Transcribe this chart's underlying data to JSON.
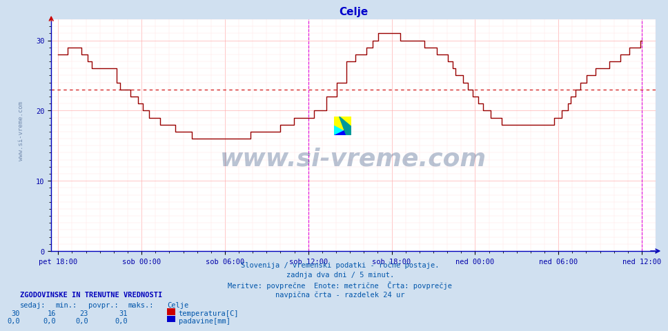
{
  "title": "Celje",
  "title_color": "#0000cc",
  "bg_color": "#d0e0f0",
  "plot_bg_color": "#ffffff",
  "grid_major_color": "#ffb0b0",
  "grid_minor_color": "#ffe0e0",
  "xlabel_color": "#0000aa",
  "ylabel_color": "#0000aa",
  "x_labels": [
    "pet 18:00",
    "sob 00:00",
    "sob 06:00",
    "sob 12:00",
    "sob 18:00",
    "ned 00:00",
    "ned 06:00",
    "ned 12:00"
  ],
  "ylim": [
    0,
    33
  ],
  "yticks": [
    0,
    10,
    20,
    30
  ],
  "avg_line_y": 23,
  "avg_line_color": "#cc0000",
  "vertical_line_color": "#dd00dd",
  "temp_line_color": "#990000",
  "watermark_text": "www.si-vreme.com",
  "watermark_color": "#1a3a6e",
  "watermark_alpha": 0.3,
  "footer_lines": [
    "Slovenija / vremenski podatki - ročne postaje.",
    "zadnja dva dni / 5 minut.",
    "Meritve: povprečne  Enote: metrične  Črta: povprečje",
    "navpična črta - razdelek 24 ur"
  ],
  "footer_color": "#0055aa",
  "legend_title": "ZGODOVINSKE IN TRENUTNE VREDNOSTI",
  "legend_title_color": "#0000bb",
  "legend_headers": [
    "sedaj:",
    "min.:",
    "povpr.:",
    "maks.:"
  ],
  "legend_temp_vals": [
    "30",
    "16",
    "23",
    "31"
  ],
  "legend_rain_vals": [
    "0,0",
    "0,0",
    "0,0",
    "0,0"
  ],
  "legend_station": "Celje",
  "legend_temp_label": "temperatura[C]",
  "legend_rain_label": "padavine[mm]",
  "legend_temp_color": "#cc0000",
  "legend_rain_color": "#0000cc",
  "legend_color": "#0055aa",
  "temp_data": [
    28,
    28,
    28,
    28,
    28,
    28,
    29,
    29,
    29,
    29,
    29,
    29,
    29,
    29,
    29,
    28,
    28,
    28,
    28,
    27,
    27,
    27,
    26,
    26,
    26,
    26,
    26,
    26,
    26,
    26,
    26,
    26,
    26,
    26,
    26,
    26,
    26,
    26,
    24,
    24,
    23,
    23,
    23,
    23,
    23,
    23,
    23,
    22,
    22,
    22,
    22,
    22,
    21,
    21,
    21,
    20,
    20,
    20,
    20,
    19,
    19,
    19,
    19,
    19,
    19,
    19,
    18,
    18,
    18,
    18,
    18,
    18,
    18,
    18,
    18,
    18,
    17,
    17,
    17,
    17,
    17,
    17,
    17,
    17,
    17,
    17,
    17,
    16,
    16,
    16,
    16,
    16,
    16,
    16,
    16,
    16,
    16,
    16,
    16,
    16,
    16,
    16,
    16,
    16,
    16,
    16,
    16,
    16,
    16,
    16,
    16,
    16,
    16,
    16,
    16,
    16,
    16,
    16,
    16,
    16,
    16,
    16,
    16,
    16,
    16,
    17,
    17,
    17,
    17,
    17,
    17,
    17,
    17,
    17,
    17,
    17,
    17,
    17,
    17,
    17,
    17,
    17,
    17,
    17,
    18,
    18,
    18,
    18,
    18,
    18,
    18,
    18,
    18,
    19,
    19,
    19,
    19,
    19,
    19,
    19,
    19,
    19,
    19,
    19,
    19,
    19,
    20,
    20,
    20,
    20,
    20,
    20,
    20,
    20,
    22,
    22,
    22,
    22,
    22,
    22,
    22,
    24,
    24,
    24,
    24,
    24,
    24,
    27,
    27,
    27,
    27,
    27,
    27,
    28,
    28,
    28,
    28,
    28,
    28,
    28,
    29,
    29,
    29,
    29,
    30,
    30,
    30,
    30,
    31,
    31,
    31,
    31,
    31,
    31,
    31,
    31,
    31,
    31,
    31,
    31,
    31,
    31,
    30,
    30,
    30,
    30,
    30,
    30,
    30,
    30,
    30,
    30,
    30,
    30,
    30,
    30,
    30,
    30,
    29,
    29,
    29,
    29,
    29,
    29,
    29,
    29,
    28,
    28,
    28,
    28,
    28,
    28,
    28,
    27,
    27,
    27,
    26,
    26,
    25,
    25,
    25,
    25,
    25,
    24,
    24,
    24,
    23,
    23,
    23,
    22,
    22,
    22,
    22,
    21,
    21,
    21,
    20,
    20,
    20,
    20,
    20,
    19,
    19,
    19,
    19,
    19,
    19,
    19,
    18,
    18,
    18,
    18,
    18,
    18,
    18,
    18,
    18,
    18,
    18,
    18,
    18,
    18,
    18,
    18,
    18,
    18,
    18,
    18,
    18,
    18,
    18,
    18,
    18,
    18,
    18,
    18,
    18,
    18,
    18,
    18,
    18,
    18,
    19,
    19,
    19,
    19,
    19,
    20,
    20,
    20,
    20,
    21,
    21,
    22,
    22,
    22,
    23,
    23,
    23,
    24,
    24,
    24,
    24,
    25,
    25,
    25,
    25,
    25,
    25,
    26,
    26,
    26,
    26,
    26,
    26,
    26,
    26,
    26,
    27,
    27,
    27,
    27,
    27,
    27,
    27,
    28,
    28,
    28,
    28,
    28,
    28,
    29,
    29,
    29,
    29,
    29,
    29,
    29,
    30,
    30
  ]
}
